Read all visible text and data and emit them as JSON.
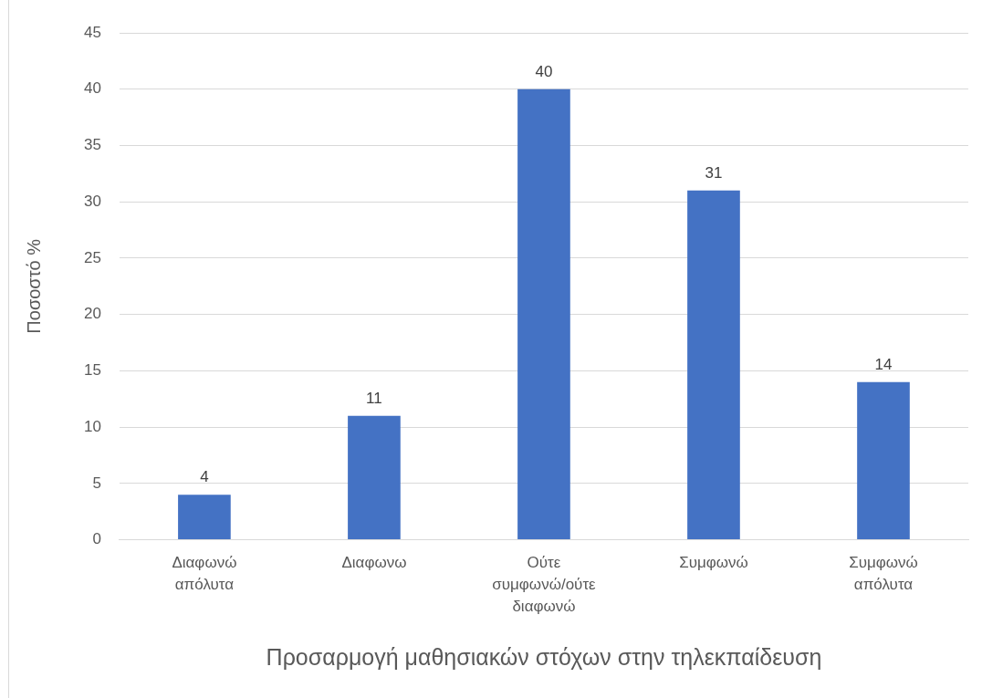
{
  "chart_data": {
    "type": "bar",
    "categories": [
      "Διαφωνώ απόλυτα",
      "Διαφωνω",
      "Ούτε συμφωνώ/ούτε διαφωνώ",
      "Συμφωνώ",
      "Συμφωνώ απόλυτα"
    ],
    "values": [
      4,
      11,
      40,
      31,
      14
    ],
    "color": "#4472c4",
    "xlabel": "Προσαρμογή μαθησιακών στόχων στην τηλεκπαίδευση",
    "ylabel": "Ποσοστό %",
    "ylim": [
      0,
      45
    ],
    "yticks": [
      0,
      5,
      10,
      15,
      20,
      25,
      30,
      35,
      40,
      45
    ],
    "grid": "y",
    "data_labels": true,
    "legend": false
  }
}
